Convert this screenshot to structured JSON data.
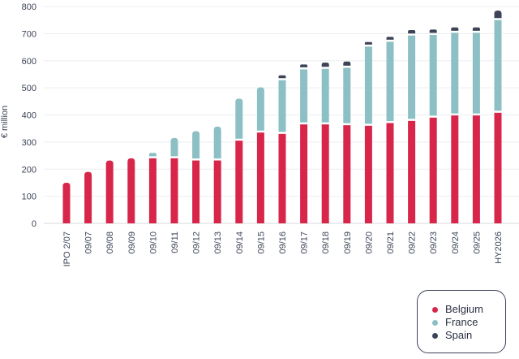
{
  "chart_data": {
    "type": "bar",
    "stacked": true,
    "ylabel": "€ million",
    "xlabel": "",
    "ylim": [
      0,
      800
    ],
    "yticks": [
      0,
      100,
      200,
      300,
      400,
      500,
      600,
      700,
      800
    ],
    "grid": true,
    "legend_position": "bottom-right",
    "categories": [
      "IPO 2/07",
      "09/07",
      "09/08",
      "09/09",
      "09/10",
      "09/11",
      "09/12",
      "09/13",
      "09/14",
      "09/15",
      "09/16",
      "09/17",
      "09/18",
      "09/19",
      "09/20",
      "09/21",
      "09/22",
      "09/23",
      "09/24",
      "09/25",
      "HY2026"
    ],
    "series": [
      {
        "name": "Belgium",
        "color": "#d8264a",
        "values": [
          150,
          190,
          232,
          240,
          240,
          240,
          232,
          232,
          305,
          335,
          330,
          365,
          365,
          362,
          360,
          370,
          378,
          390,
          398,
          398,
          408
        ]
      },
      {
        "name": "France",
        "color": "#8cc0c4",
        "values": [
          0,
          0,
          0,
          0,
          20,
          75,
          108,
          125,
          155,
          167,
          198,
          203,
          205,
          212,
          292,
          300,
          315,
          305,
          305,
          305,
          342
        ]
      },
      {
        "name": "Spain",
        "color": "#3d4457",
        "values": [
          0,
          0,
          0,
          0,
          0,
          0,
          0,
          0,
          0,
          0,
          18,
          18,
          23,
          23,
          17,
          18,
          20,
          20,
          20,
          20,
          35
        ]
      }
    ]
  }
}
